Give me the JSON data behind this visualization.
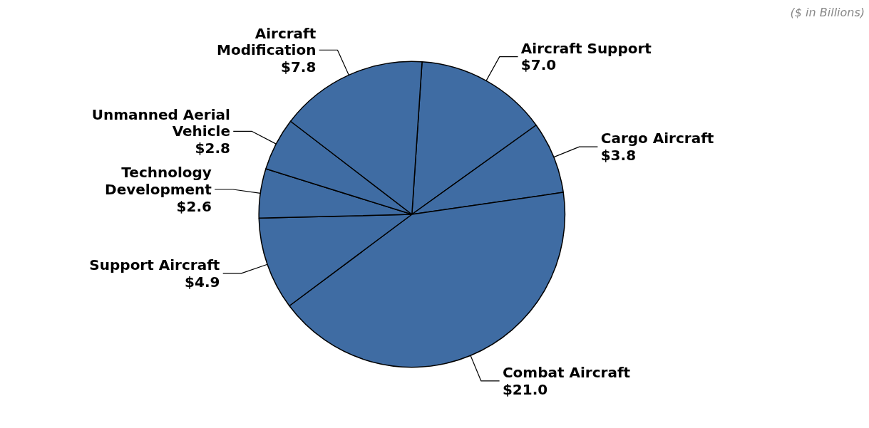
{
  "chart_data": {
    "type": "pie",
    "categories": [
      "Aircraft Support",
      "Cargo Aircraft",
      "Combat Aircraft",
      "Support Aircraft",
      "Technology Development",
      "Unmanned Aerial Vehicle",
      "Aircraft Modification"
    ],
    "values": [
      7.0,
      3.8,
      21.0,
      4.9,
      2.6,
      2.8,
      7.8
    ],
    "colors": [
      "#3f6ca3",
      "#3f6ca3",
      "#3f6ca3",
      "#3f6ca3",
      "#3f6ca3",
      "#3f6ca3",
      "#3f6ca3"
    ],
    "value_labels": [
      "$7.0",
      "$3.8",
      "$21.0",
      "$4.9",
      "$2.6",
      "$2.8",
      "$7.8"
    ],
    "annotations": [
      "($ in Billions)"
    ]
  }
}
